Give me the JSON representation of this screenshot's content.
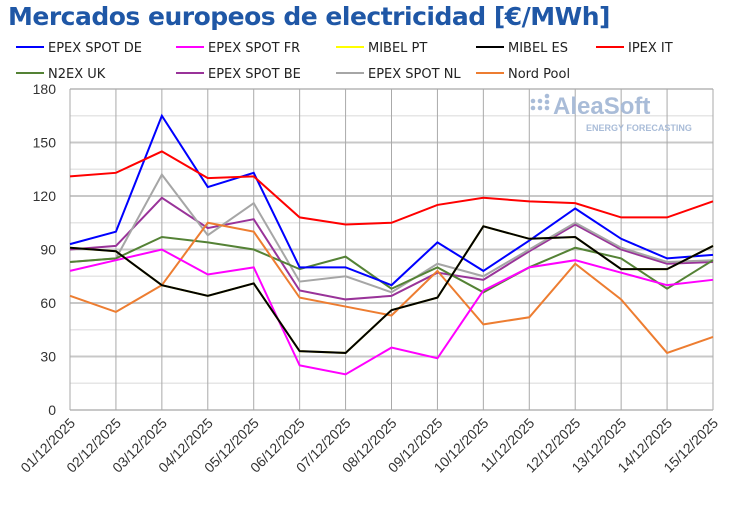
{
  "chart_data": {
    "type": "line",
    "title": "Mercados europeos de electricidad [€/MWh]",
    "xlabel": "",
    "ylabel": "",
    "ylim": [
      0,
      180
    ],
    "yticks": [
      0,
      30,
      60,
      90,
      120,
      150,
      180
    ],
    "grid": true,
    "legend_placement": "top",
    "watermark": {
      "brand": "AleaSoft",
      "tagline": "ENERGY FORECASTING"
    },
    "categories": [
      "01/12/2025",
      "02/12/2025",
      "03/12/2025",
      "04/12/2025",
      "05/12/2025",
      "06/12/2025",
      "07/12/2025",
      "08/12/2025",
      "09/12/2025",
      "10/12/2025",
      "11/12/2025",
      "12/12/2025",
      "13/12/2025",
      "14/12/2025",
      "15/12/2025"
    ],
    "series": [
      {
        "name": "EPEX SPOT DE",
        "color": "#0000ff",
        "values": [
          93,
          100,
          165,
          125,
          133,
          80,
          80,
          70,
          94,
          78,
          95,
          113,
          96,
          85,
          87
        ]
      },
      {
        "name": "EPEX SPOT FR",
        "color": "#ff00ff",
        "values": [
          78,
          84,
          90,
          76,
          80,
          25,
          20,
          35,
          29,
          67,
          80,
          84,
          77,
          70,
          73
        ]
      },
      {
        "name": "MIBEL PT",
        "color": "#ffff00",
        "values": [
          91,
          89,
          70,
          64,
          71,
          33,
          32,
          56,
          63,
          103,
          96,
          97,
          79,
          79,
          92
        ]
      },
      {
        "name": "MIBEL ES",
        "color": "#000000",
        "values": [
          91,
          89,
          70,
          64,
          71,
          33,
          32,
          56,
          63,
          103,
          96,
          97,
          79,
          79,
          92
        ]
      },
      {
        "name": "IPEX IT",
        "color": "#ff0000",
        "values": [
          131,
          133,
          145,
          130,
          131,
          108,
          104,
          105,
          115,
          119,
          117,
          116,
          108,
          108,
          117
        ]
      },
      {
        "name": "N2EX UK",
        "color": "#548235",
        "values": [
          83,
          85,
          97,
          94,
          90,
          79,
          86,
          68,
          80,
          66,
          80,
          91,
          85,
          68,
          84
        ]
      },
      {
        "name": "EPEX SPOT BE",
        "color": "#993399",
        "values": [
          90,
          92,
          119,
          102,
          107,
          67,
          62,
          64,
          77,
          73,
          89,
          104,
          90,
          82,
          83
        ]
      },
      {
        "name": "EPEX SPOT NL",
        "color": "#a6a6a6",
        "values": [
          83,
          85,
          132,
          98,
          116,
          72,
          75,
          66,
          82,
          75,
          90,
          105,
          91,
          83,
          84
        ]
      },
      {
        "name": "Nord Pool",
        "color": "#ed7d31",
        "values": [
          64,
          55,
          70,
          105,
          100,
          63,
          58,
          53,
          78,
          48,
          52,
          82,
          62,
          32,
          41
        ]
      }
    ]
  }
}
